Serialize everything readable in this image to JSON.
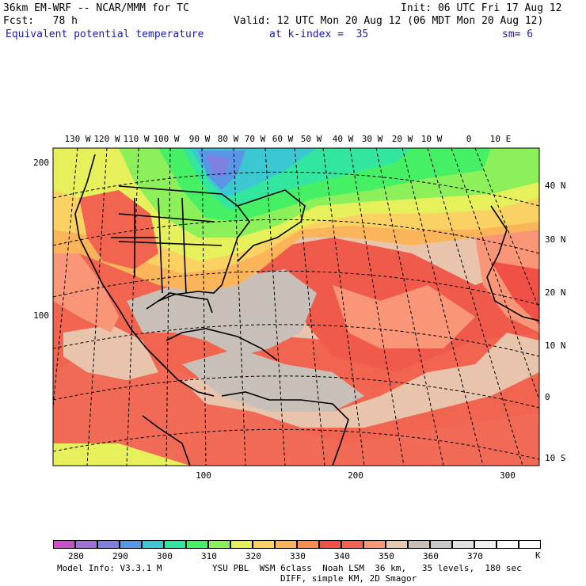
{
  "header": {
    "title_left": "36km EM-WRF -- NCAR/MMM for TC",
    "init": "Init: 06 UTC Fri 17 Aug 12",
    "fcst": "Fcst:   78 h",
    "valid": "Valid: 12 UTC Mon 20 Aug 12 (06 MDT Mon 20 Aug 12)",
    "field": "Equivalent potential temperature",
    "level": "at k-index =  35",
    "smooth": "sm= 6"
  },
  "map": {
    "lon_labels": [
      "130 W",
      "120 W",
      "110 W",
      "100 W",
      "90 W",
      "80 W",
      "70 W",
      "60 W",
      "50 W",
      "40 W",
      "30 W",
      "20 W",
      "10 W",
      "0",
      "10 E"
    ],
    "lat_labels": [
      "40 N",
      "30 N",
      "20 N",
      "10 N",
      "0",
      "10 S"
    ],
    "grid_y_labels": [
      "200",
      "100"
    ],
    "grid_x_labels": [
      "100",
      "200",
      "300"
    ]
  },
  "colorbar": {
    "colors": [
      "#c850c8",
      "#a070d8",
      "#8080e0",
      "#5a96e6",
      "#3cc8d2",
      "#32e6a0",
      "#46f064",
      "#8cf05a",
      "#e6f05a",
      "#fad264",
      "#fab45a",
      "#fa8c50",
      "#f05046",
      "#f06450",
      "#fa9678",
      "#e6c8b4",
      "#c8c0b8",
      "#c8c8c8",
      "#e0e0e0",
      "#f0f0f0",
      "#ffffff",
      "#ffffff"
    ],
    "labels": [
      "280",
      "290",
      "300",
      "310",
      "320",
      "330",
      "340",
      "350",
      "360",
      "370"
    ],
    "unit": "K"
  },
  "footer": {
    "model_info": "Model Info: V3.3.1 M",
    "physics": "YSU PBL  WSM 6class  Noah LSM  36 km,   35 levels,  180 sec",
    "diff": "DIFF, simple KM, 2D Smagor"
  }
}
